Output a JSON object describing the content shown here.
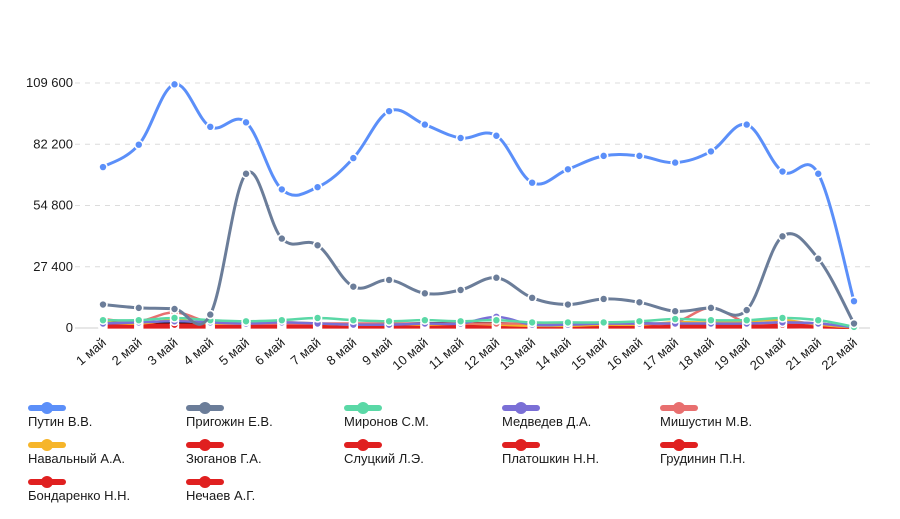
{
  "chart_data": {
    "type": "line",
    "title": "",
    "xlabel": "",
    "ylabel": "",
    "ylim": [
      0,
      109600
    ],
    "yticks": [
      0,
      27400,
      54800,
      82200,
      109600
    ],
    "ytick_labels": [
      "0",
      "27 400",
      "54 800",
      "82 200",
      "109 600"
    ],
    "grid": true,
    "legend_position": "bottom",
    "categories": [
      "1 май",
      "2 май",
      "3 май",
      "4 май",
      "5 май",
      "6 май",
      "7 май",
      "8 май",
      "9 май",
      "10 май",
      "11 май",
      "12 май",
      "13 май",
      "14 май",
      "15 май",
      "16 май",
      "17 май",
      "18 май",
      "19 май",
      "20 май",
      "21 май",
      "22 май"
    ],
    "series": [
      {
        "name": "Путин В.В.",
        "color": "#5b8ff9",
        "values": [
          72000,
          82000,
          109000,
          90000,
          92000,
          62000,
          63000,
          76000,
          97000,
          91000,
          85000,
          86000,
          65000,
          71000,
          77000,
          77000,
          74000,
          79000,
          91000,
          70000,
          69000,
          12000
        ]
      },
      {
        "name": "Пригожин Е.В.",
        "color": "#6b7d99",
        "values": [
          10500,
          9000,
          8500,
          6000,
          69000,
          40000,
          37000,
          18500,
          21500,
          15500,
          17000,
          22500,
          13500,
          10500,
          13000,
          11500,
          7500,
          9000,
          8000,
          41000,
          31000,
          2000
        ]
      },
      {
        "name": "Миронов С.М.",
        "color": "#5ad8a6",
        "values": [
          3500,
          3500,
          4500,
          3500,
          3000,
          3500,
          4500,
          3500,
          3000,
          3500,
          3000,
          3500,
          2500,
          2500,
          2500,
          3000,
          4000,
          3500,
          3500,
          4500,
          3500,
          500
        ]
      },
      {
        "name": "Медведев Д.А.",
        "color": "#7a6fd6",
        "values": [
          2000,
          2500,
          3000,
          2500,
          2000,
          2500,
          2000,
          1500,
          1500,
          2000,
          2000,
          5000,
          1500,
          1500,
          2000,
          2000,
          2000,
          2000,
          2000,
          2500,
          2000,
          300
        ]
      },
      {
        "name": "Мишустин М.В.",
        "color": "#e86f6f",
        "values": [
          4000,
          3000,
          7000,
          2500,
          2000,
          2000,
          2000,
          2000,
          2000,
          2000,
          2000,
          2000,
          2000,
          2000,
          2000,
          2000,
          2500,
          9000,
          2500,
          2500,
          2000,
          300
        ]
      },
      {
        "name": "Навальный А.А.",
        "color": "#f6b52a",
        "values": [
          2500,
          2000,
          3500,
          2000,
          2000,
          2500,
          2000,
          1500,
          2000,
          1500,
          2000,
          1500,
          1000,
          1000,
          1500,
          1500,
          2500,
          2500,
          3000,
          3500,
          1500,
          200
        ]
      },
      {
        "name": "Зюганов Г.А.",
        "color": "#e02020",
        "values": [
          1500,
          1500,
          1500,
          1500,
          1500,
          1500,
          1500,
          1500,
          1500,
          1500,
          1500,
          1500,
          1000,
          1000,
          1000,
          1500,
          1500,
          1500,
          1500,
          1500,
          1500,
          200
        ]
      },
      {
        "name": "Слуцкий Л.Э.",
        "color": "#e02020",
        "values": [
          1000,
          1000,
          1000,
          1000,
          1000,
          1000,
          1000,
          1000,
          1000,
          1000,
          1000,
          1000,
          1000,
          1000,
          1000,
          1000,
          1000,
          1000,
          1000,
          1000,
          1000,
          200
        ]
      },
      {
        "name": "Платошкин Н.Н.",
        "color": "#e02020",
        "values": [
          800,
          800,
          800,
          800,
          800,
          800,
          800,
          800,
          800,
          800,
          800,
          800,
          800,
          800,
          800,
          800,
          800,
          800,
          800,
          800,
          800,
          100
        ]
      },
      {
        "name": "Грудинин П.Н.",
        "color": "#e02020",
        "values": [
          600,
          600,
          600,
          600,
          600,
          600,
          600,
          600,
          600,
          600,
          600,
          600,
          600,
          600,
          600,
          600,
          600,
          600,
          600,
          600,
          600,
          100
        ]
      },
      {
        "name": "Бондаренко Н.Н.",
        "color": "#e02020",
        "values": [
          400,
          400,
          400,
          400,
          400,
          400,
          400,
          400,
          400,
          400,
          400,
          400,
          400,
          400,
          400,
          400,
          400,
          400,
          400,
          400,
          400,
          100
        ]
      },
      {
        "name": "Нечаев А.Г.",
        "color": "#e02020",
        "values": [
          300,
          300,
          300,
          300,
          300,
          300,
          300,
          300,
          300,
          300,
          300,
          300,
          300,
          300,
          300,
          300,
          300,
          300,
          300,
          300,
          300,
          100
        ]
      }
    ]
  }
}
